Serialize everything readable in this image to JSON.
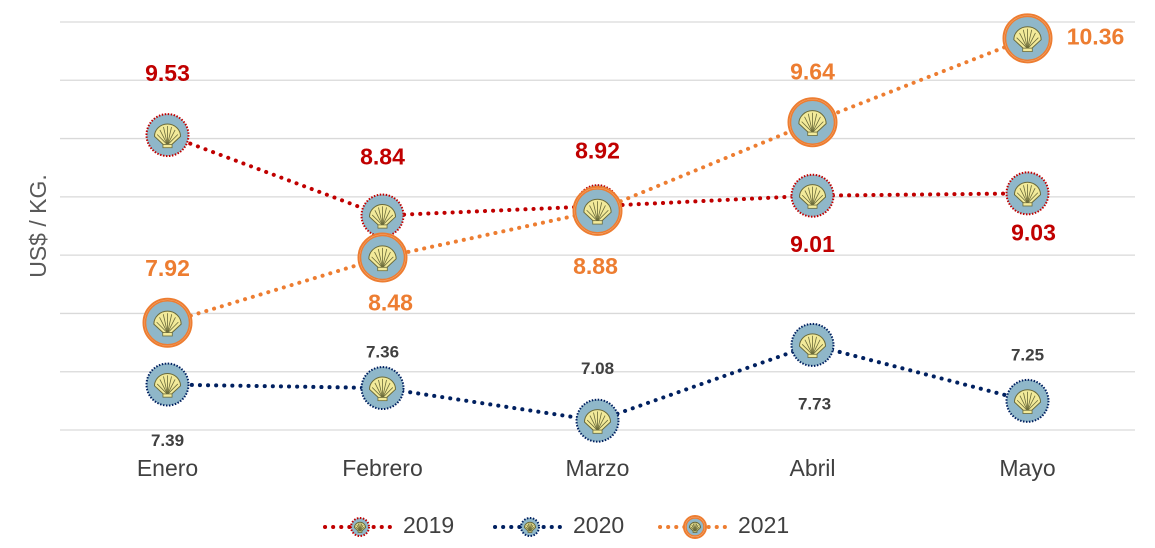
{
  "chart_data": {
    "type": "line",
    "y_label": "US$ / KG.",
    "categories": [
      "Enero",
      "Febrero",
      "Marzo",
      "Abril",
      "Mayo"
    ],
    "series": [
      {
        "name": "2019",
        "color": "#c00000",
        "values": [
          9.53,
          8.84,
          8.92,
          9.01,
          9.03
        ]
      },
      {
        "name": "2020",
        "color": "#002060",
        "values": [
          7.39,
          7.36,
          7.08,
          7.73,
          7.25
        ]
      },
      {
        "name": "2021",
        "color": "#ed7d31",
        "values": [
          7.92,
          8.48,
          8.88,
          9.64,
          10.36
        ]
      }
    ],
    "ylim": [
      7,
      10.5
    ],
    "yticks": [
      7,
      7.5,
      8,
      8.5,
      9,
      9.5,
      10,
      10.5
    ],
    "grid": true,
    "legend": "bottom"
  }
}
